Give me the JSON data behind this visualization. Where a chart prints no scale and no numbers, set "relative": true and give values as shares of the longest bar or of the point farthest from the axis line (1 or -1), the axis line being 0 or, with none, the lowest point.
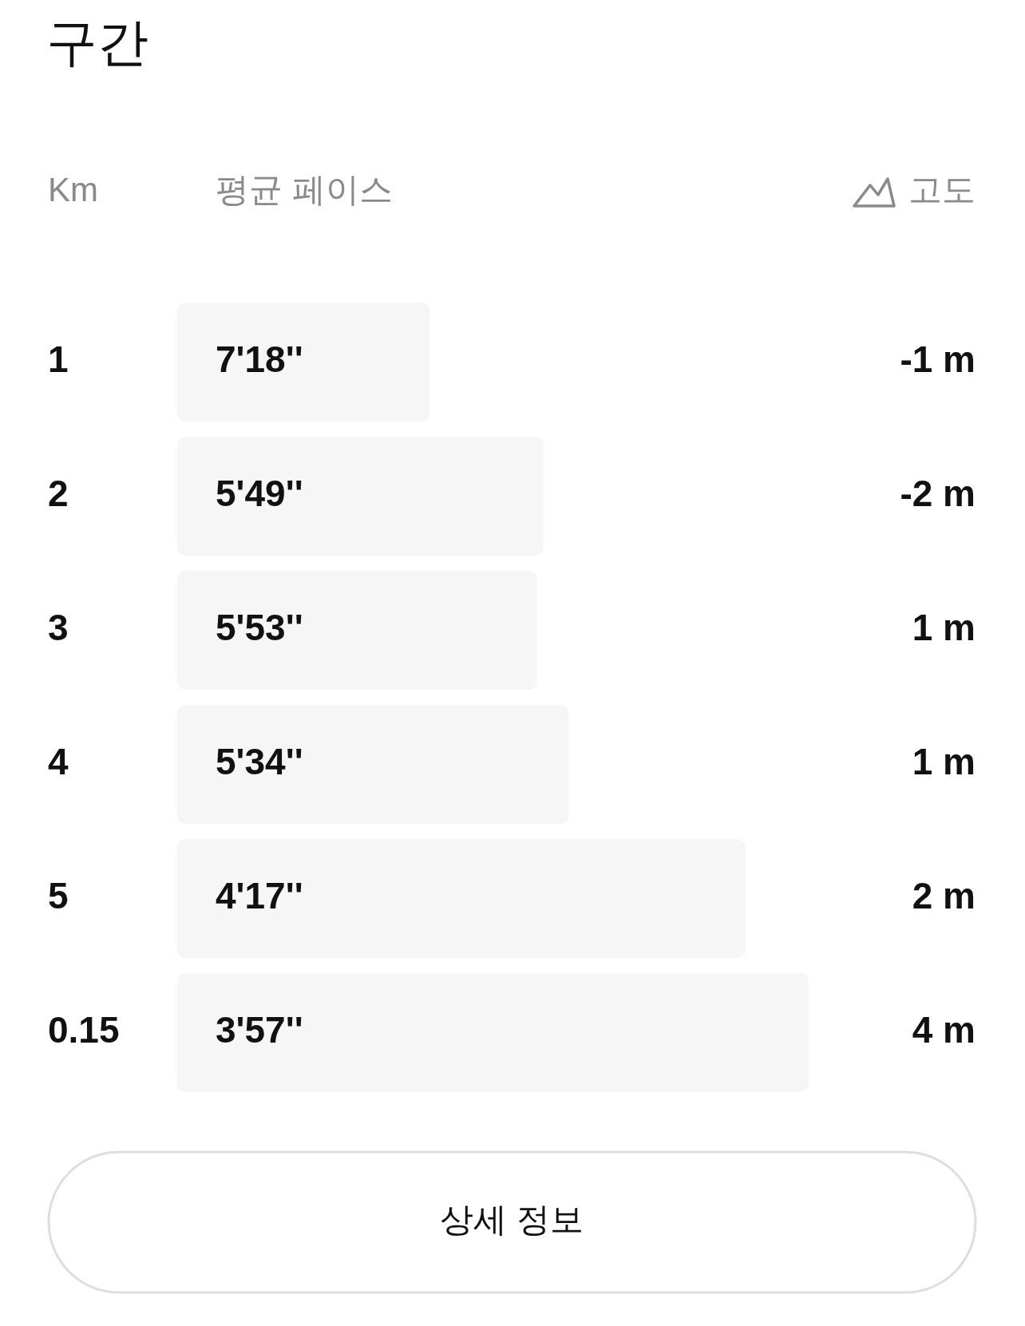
{
  "chart_data": {
    "type": "bar",
    "orientation": "horizontal",
    "title": "구간",
    "xlabel": "평균 페이스",
    "ylabel": "Km",
    "y2label": "고도",
    "categories": [
      "1",
      "2",
      "3",
      "4",
      "5",
      "0.15"
    ],
    "relative": true,
    "series": [
      {
        "color": "#f6f6f6",
        "values": [
          0.4,
          0.58,
          0.57,
          0.62,
          0.9,
          1
        ]
      }
    ],
    "annotations": [
      "7'18''",
      "5'49''",
      "5'53''",
      "5'34''",
      "4'17''",
      "3'57''",
      "-1 m",
      "-2 m",
      "1 m",
      "1 m",
      "2 m",
      "4 m",
      "상세 정보"
    ]
  }
}
